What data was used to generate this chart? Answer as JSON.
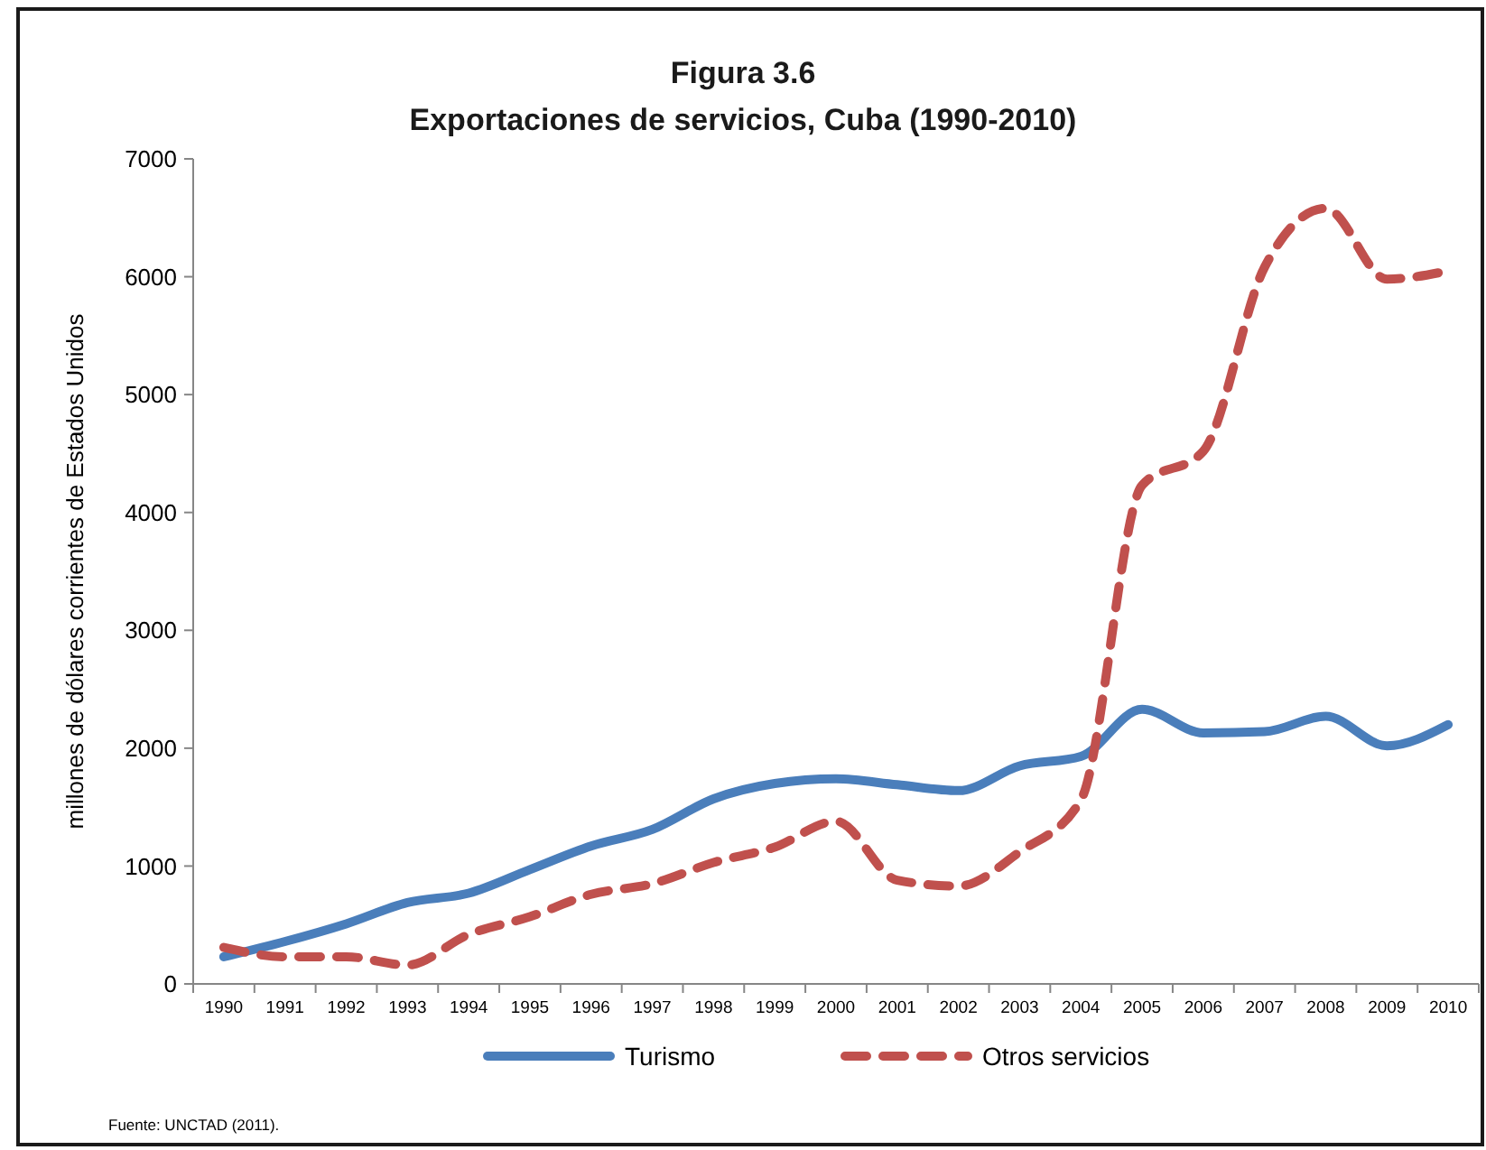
{
  "chart_data": {
    "type": "line",
    "title": "Figura 3.6",
    "subtitle": "Exportaciones de servicios, Cuba (1990-2010)",
    "ylabel": "millones de dólares corrientes de Estados Unidos",
    "categories": [
      "1990",
      "1991",
      "1992",
      "1993",
      "1994",
      "1995",
      "1996",
      "1997",
      "1998",
      "1999",
      "2000",
      "2001",
      "2002",
      "2003",
      "2004",
      "2005",
      "2006",
      "2007",
      "2008",
      "2009",
      "2010"
    ],
    "series": [
      {
        "name": "Turismo",
        "color": "#4a7ebb",
        "line_style": "solid",
        "values": [
          230,
          360,
          510,
          690,
          770,
          970,
          1170,
          1310,
          1570,
          1700,
          1740,
          1690,
          1640,
          1850,
          1930,
          2330,
          2130,
          2140,
          2270,
          2020,
          2200
        ]
      },
      {
        "name": "Otros servicios",
        "color": "#c0504d",
        "line_style": "dashed",
        "values": [
          310,
          230,
          230,
          160,
          420,
          570,
          760,
          850,
          1030,
          1160,
          1380,
          880,
          830,
          1120,
          1560,
          4230,
          4520,
          6080,
          6580,
          5980,
          6050
        ]
      }
    ],
    "ylim": [
      0,
      7000
    ],
    "yticks": [
      0,
      1000,
      2000,
      3000,
      4000,
      5000,
      6000,
      7000
    ],
    "legend": "bottom",
    "annotations": [
      "Fuente: UNCTAD (2011)."
    ]
  }
}
